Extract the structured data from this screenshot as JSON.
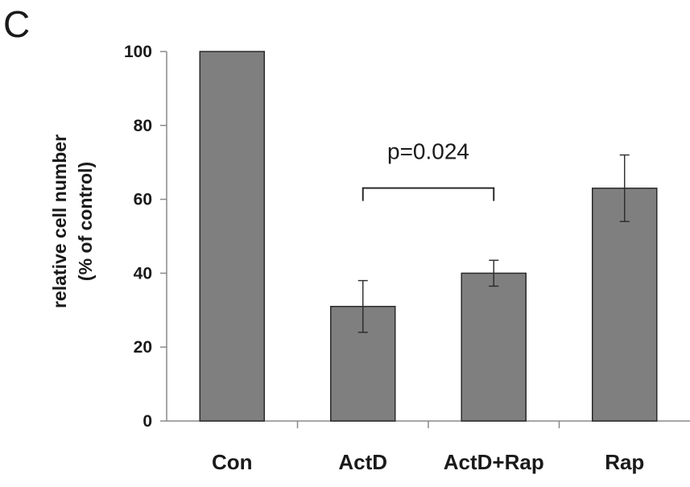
{
  "panel_label": "C",
  "chart_data": {
    "type": "bar",
    "categories": [
      "Con",
      "ActD",
      "ActD+Rap",
      "Rap"
    ],
    "values": [
      100,
      31,
      40,
      63
    ],
    "errors": [
      null,
      7,
      3.5,
      9
    ],
    "ylabel_line1": "relative  cell  number",
    "ylabel_line2": "(% of control)",
    "xlabel": "",
    "ylim": [
      0,
      100
    ],
    "yticks": [
      0,
      20,
      40,
      60,
      80,
      100
    ],
    "grid": false,
    "bar_color": "#7f7f7f",
    "annotation": {
      "text": "p=0.024",
      "bracket_between": [
        "ActD",
        "ActD+Rap"
      ],
      "y_value": 60
    }
  }
}
